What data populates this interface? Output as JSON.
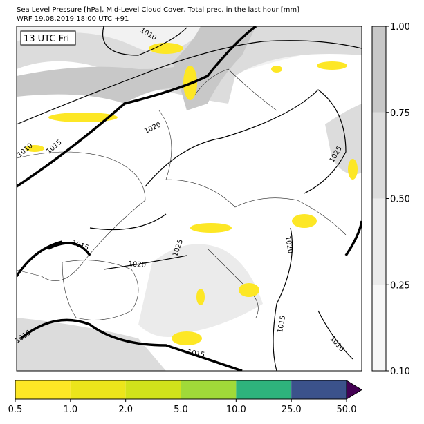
{
  "header": {
    "title": "Sea Level Pressure [hPa], Mid-Level Cloud Cover, Total prec. in the last hour [mm]",
    "subtitle": "WRF 19.08.2019 18:00 UTC +91"
  },
  "map": {
    "time_label": "13 UTC Fri",
    "isobar_labels": [
      "1010",
      "1010",
      "1015",
      "1020",
      "1025",
      "1015",
      "1020",
      "1025",
      "1020",
      "1015",
      "1015",
      "1015",
      "1010"
    ]
  },
  "cloud_colorbar": {
    "ticks": [
      "0.10",
      "0.25",
      "0.50",
      "0.75",
      "1.00"
    ],
    "colors": [
      "#f7f7f7",
      "#ebebeb",
      "#dcdcdc",
      "#c8c8c8"
    ]
  },
  "precip_colorbar": {
    "ticks": [
      "0.5",
      "1.0",
      "2.0",
      "5.0",
      "10.0",
      "25.0",
      "50.0"
    ],
    "colors": [
      "#fde725",
      "#ece51b",
      "#d1e21b",
      "#a0da39",
      "#2eb37c",
      "#3b528b"
    ],
    "extend_color": "#440154"
  }
}
